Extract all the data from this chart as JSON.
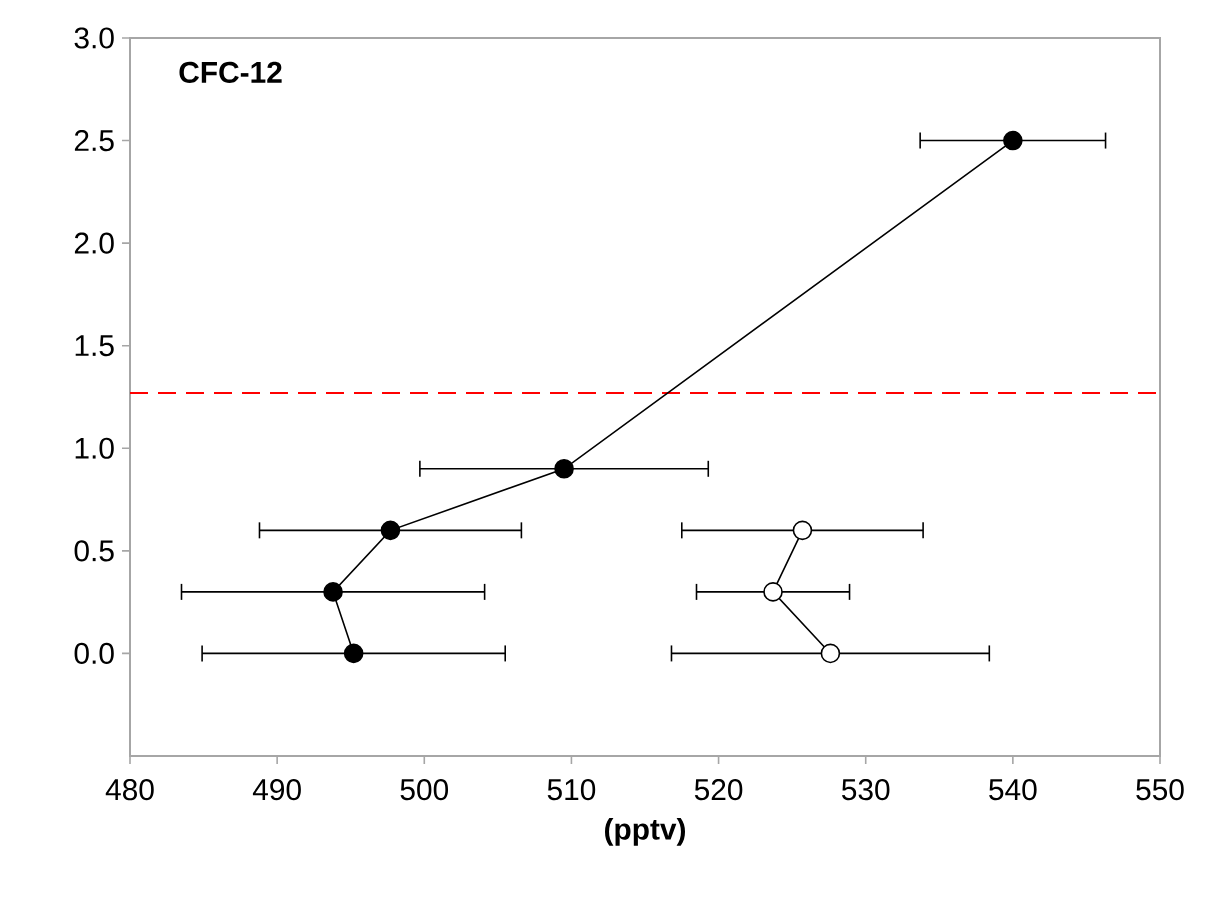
{
  "chart_data": {
    "type": "line",
    "title": "CFC-12",
    "xlabel": "(pptv)",
    "series": [
      {
        "color": "#000000",
        "x": [
          495.2,
          493.8,
          497.7,
          509.5,
          540
        ],
        "values": [
          0.0,
          0.3,
          0.6,
          0.9,
          2.5
        ],
        "xerrors": [
          10.3,
          10.3,
          8.9,
          9.8,
          6.3
        ]
      },
      {
        "color": "#ffffff",
        "x": [
          527.6,
          523.7,
          525.7
        ],
        "values": [
          0.0,
          0.3,
          0.6
        ],
        "xerrors": [
          10.8,
          5.2,
          8.2
        ]
      }
    ],
    "marker": "circle",
    "line_style": "solid",
    "grid": false,
    "xlim": [
      480,
      550
    ],
    "xticks": [
      480,
      490,
      500,
      510,
      520,
      530,
      540,
      550
    ],
    "ylim": [
      -0.5,
      3.0
    ],
    "yticks": [
      {
        "value": 0,
        "label": "0.0"
      },
      {
        "value": 0.5,
        "label": "0.5"
      },
      {
        "value": 1,
        "label": "1.0"
      },
      {
        "value": 1.5,
        "label": "1.5"
      },
      {
        "value": 2,
        "label": "2.0"
      },
      {
        "value": 2.5,
        "label": "2.5"
      },
      {
        "value": 3,
        "label": "3.0"
      }
    ],
    "ref_lines": [
      {
        "axis": "y",
        "value": 1.27,
        "color": "#ff0000",
        "line_style": "dashed"
      }
    ]
  }
}
